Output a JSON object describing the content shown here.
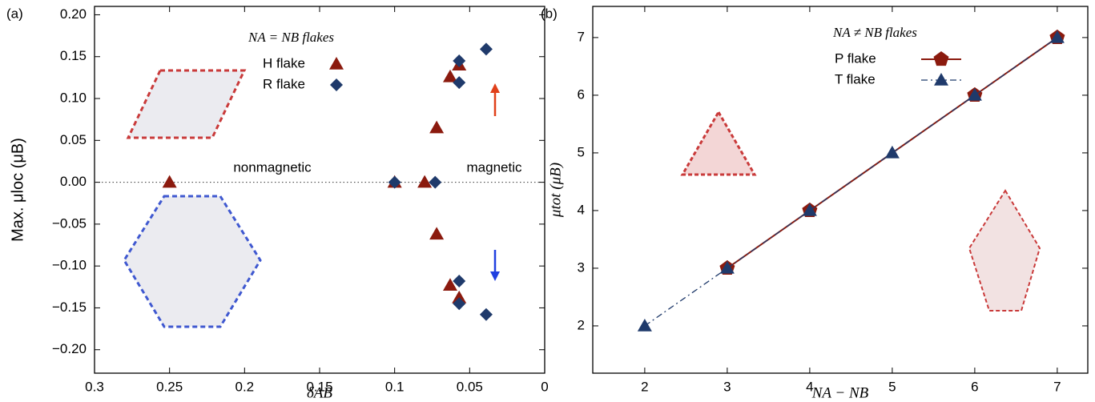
{
  "chart_data": [
    {
      "type": "scatter",
      "panel": "(a)",
      "xlabel": "δAB",
      "ylabel": "Max. μloc (μB)",
      "legend_title": "NA = NB flakes",
      "xlim": [
        0.3,
        0
      ],
      "ylim": [
        -0.228,
        0.21
      ],
      "xticks": [
        0.3,
        0.25,
        0.2,
        0.15,
        0.1,
        0.05,
        0
      ],
      "yticks": [
        {
          "value": 0.2,
          "label": "0.20"
        },
        {
          "value": 0.15,
          "label": "0.15"
        },
        {
          "value": 0.1,
          "label": "0.10"
        },
        {
          "value": 0.05,
          "label": "0.05"
        },
        {
          "value": 0,
          "label": "0.00"
        },
        {
          "value": -0.05,
          "label": "−0.05"
        },
        {
          "value": -0.1,
          "label": "−0.10"
        },
        {
          "value": -0.15,
          "label": "−0.15"
        },
        {
          "value": -0.2,
          "label": "−0.20"
        }
      ],
      "annotations": [
        "nonmagnetic",
        "magnetic"
      ],
      "series": [
        {
          "name": "H flake",
          "color": "#8b1a0e",
          "marker": "triangle",
          "x": [
            0.25,
            0.1,
            0.08,
            0.072,
            0.072,
            0.063,
            0.063,
            0.057,
            0.057
          ],
          "values": [
            0,
            0,
            0,
            0.065,
            -0.062,
            0.126,
            -0.123,
            0.14,
            -0.138
          ]
        },
        {
          "name": "R flake",
          "color": "#1f3a6b",
          "marker": "diamond",
          "x": [
            0.1,
            0.073,
            0.057,
            0.057,
            0.057,
            0.057,
            0.039,
            0.039
          ],
          "values": [
            0,
            0,
            0.145,
            0.119,
            -0.118,
            -0.145,
            0.159,
            -0.158
          ]
        }
      ]
    },
    {
      "type": "line",
      "panel": "(b)",
      "xlabel": "NA − NB",
      "ylabel": "μtot (μB)",
      "legend_title": "NA ≠ NB flakes",
      "xlim": [
        1.37,
        7.37
      ],
      "ylim": [
        1.18,
        7.54
      ],
      "xticks": [
        2,
        3,
        4,
        5,
        6,
        7
      ],
      "yticks": [
        2,
        3,
        4,
        5,
        6,
        7
      ],
      "series": [
        {
          "name": "P flake",
          "color": "#8b1a0e",
          "marker": "pentagon",
          "dash": "solid",
          "x": [
            3,
            4,
            6,
            7
          ],
          "values": [
            3,
            4,
            6,
            7
          ]
        },
        {
          "name": "T flake",
          "color": "#1f3a6b",
          "marker": "triangle",
          "dash": "dashdot",
          "x": [
            2,
            3,
            4,
            5,
            6,
            7
          ],
          "values": [
            2,
            3,
            4,
            5,
            6,
            7
          ]
        }
      ]
    }
  ]
}
